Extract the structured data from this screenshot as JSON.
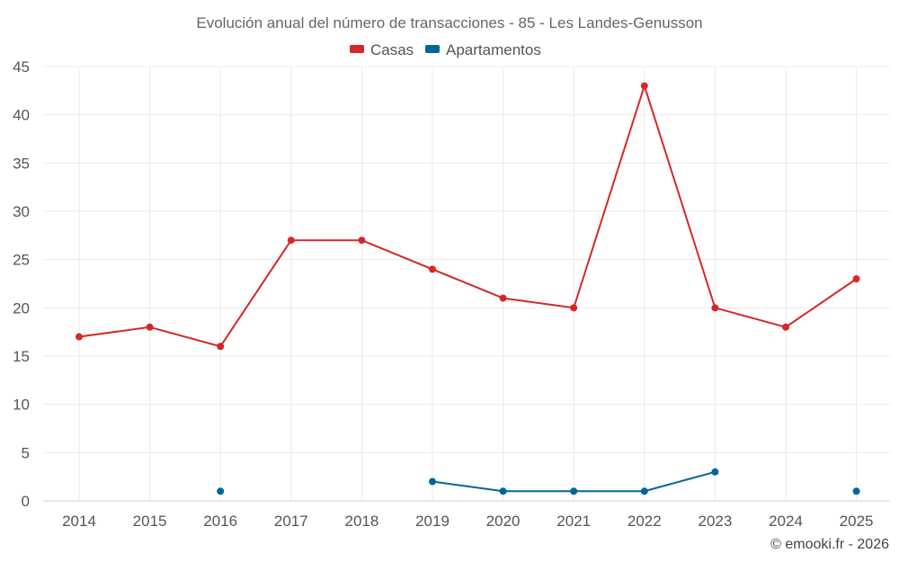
{
  "chart_data": {
    "type": "line",
    "title": "Evolución anual del número de transacciones - 85 - Les Landes-Genusson",
    "x": [
      2014,
      2015,
      2016,
      2017,
      2018,
      2019,
      2020,
      2021,
      2022,
      2023,
      2024,
      2025
    ],
    "xlabels": [
      "2014",
      "2015",
      "2016",
      "2017",
      "2018",
      "2019",
      "2020",
      "2021",
      "2022",
      "2023",
      "2024",
      "2025"
    ],
    "yticks": [
      "0",
      "5",
      "10",
      "15",
      "20",
      "25",
      "30",
      "35",
      "40",
      "45"
    ],
    "ylim": [
      0,
      45
    ],
    "xlabel": "",
    "ylabel": "",
    "grid": true,
    "legend_position": "top-center",
    "series": [
      {
        "name": "Casas",
        "color": "#d62728",
        "values": [
          17,
          18,
          16,
          27,
          27,
          24,
          21,
          20,
          43,
          20,
          18,
          23
        ]
      },
      {
        "name": "Apartamentos",
        "color": "#00659b",
        "values": [
          null,
          null,
          1,
          null,
          null,
          2,
          1,
          1,
          1,
          3,
          null,
          1
        ]
      }
    ],
    "credit": "© emooki.fr - 2026"
  }
}
